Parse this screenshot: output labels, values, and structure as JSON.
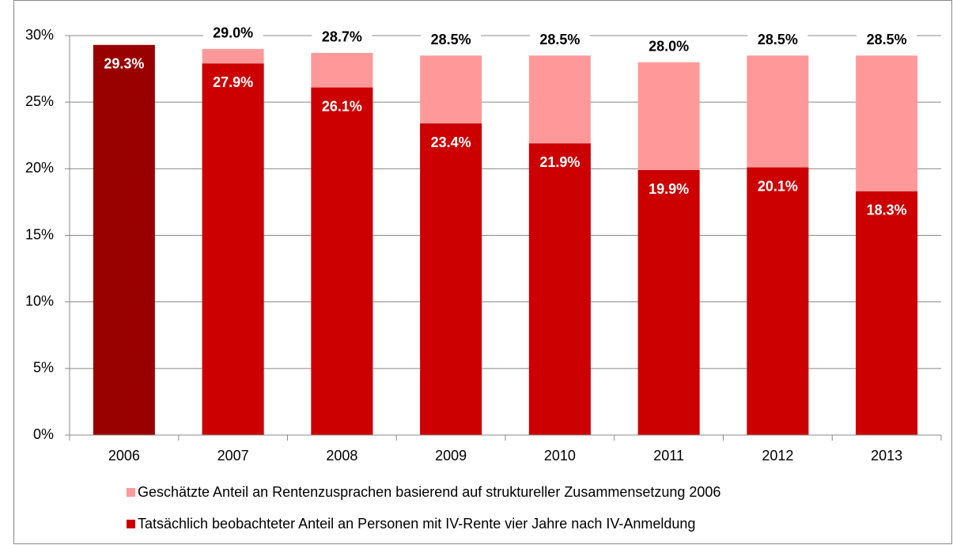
{
  "chart_data": {
    "type": "bar",
    "overlap": true,
    "categories": [
      "2006",
      "2007",
      "2008",
      "2009",
      "2010",
      "2011",
      "2012",
      "2013"
    ],
    "series": [
      {
        "name": "Geschätzte Anteil an Rentenzusprachen basierend auf struktureller Zusammensetzung 2006",
        "color": "#ff9999",
        "values": [
          null,
          29.0,
          28.7,
          28.5,
          28.5,
          28.0,
          28.5,
          28.5
        ],
        "value_labels": [
          null,
          "29.0%",
          "28.7%",
          "28.5%",
          "28.5%",
          "28.0%",
          "28.5%",
          "28.5%"
        ]
      },
      {
        "name": "Tatsächlich beobachteter Anteil an Personen mit IV-Rente vier Jahre nach IV-Anmeldung",
        "color": "#cc0000",
        "colors": [
          "#990000",
          "#cc0000",
          "#cc0000",
          "#cc0000",
          "#cc0000",
          "#cc0000",
          "#cc0000",
          "#cc0000"
        ],
        "values": [
          29.3,
          27.9,
          26.1,
          23.4,
          21.9,
          19.9,
          20.1,
          18.3
        ],
        "value_labels": [
          "29.3%",
          "27.9%",
          "26.1%",
          "23.4%",
          "21.9%",
          "19.9%",
          "20.1%",
          "18.3%"
        ]
      }
    ],
    "ylim": [
      0,
      30
    ],
    "yticks": [
      {
        "value": 0,
        "label": "0%"
      },
      {
        "value": 5,
        "label": "5%"
      },
      {
        "value": 10,
        "label": "10%"
      },
      {
        "value": 15,
        "label": "15%"
      },
      {
        "value": 20,
        "label": "20%"
      },
      {
        "value": 25,
        "label": "25%"
      },
      {
        "value": 30,
        "label": "30%"
      }
    ],
    "grid": true,
    "legend": "bottom"
  }
}
